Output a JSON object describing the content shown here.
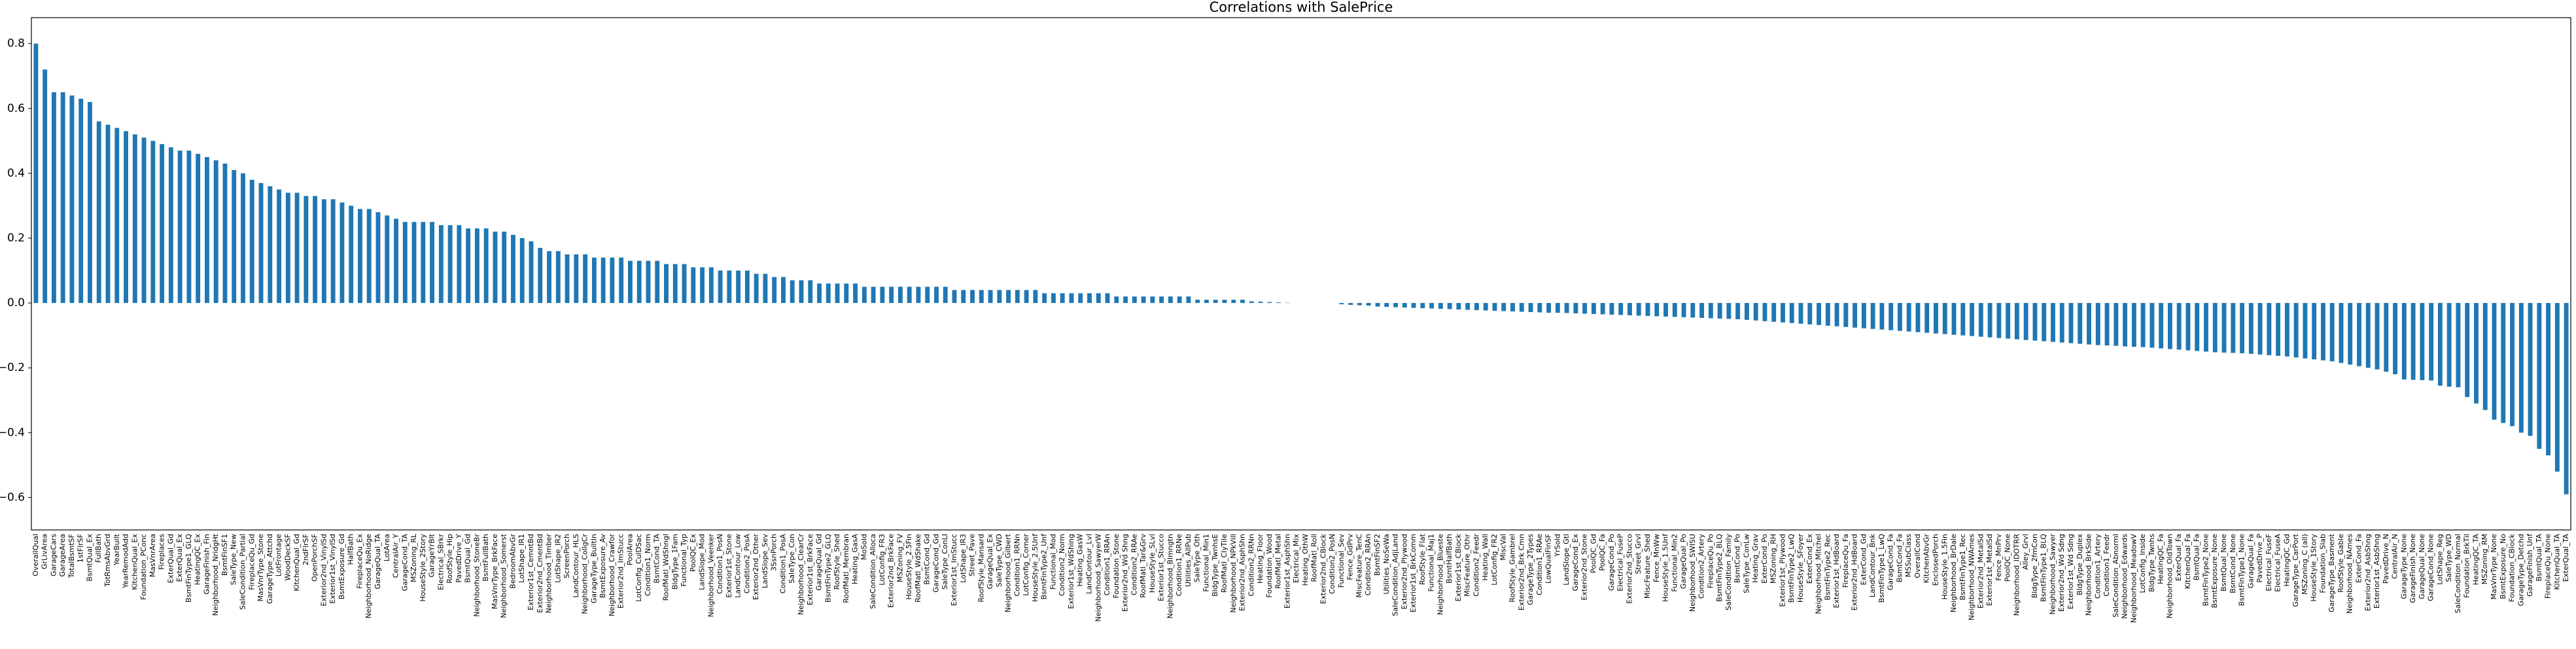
{
  "chart_data": {
    "type": "bar",
    "title": "Correlations with SalePrice",
    "color": "#1f77b4",
    "ylim": [
      -0.7,
      0.88
    ],
    "yticks": [
      {
        "value": -0.6,
        "label": "−0.6"
      },
      {
        "value": -0.4,
        "label": "−0.4"
      },
      {
        "value": -0.2,
        "label": "−0.2"
      },
      {
        "value": 0,
        "label": "0.0"
      },
      0.2,
      0.4,
      0.6,
      0.8
    ],
    "categories": [
      "OverallQual",
      "GrLivArea",
      "GarageCars",
      "GarageArea",
      "TotalBsmtSF",
      "1stFlrSF",
      "BsmtQual_Ex",
      "FullBath",
      "TotRmsAbvGrd",
      "YearBuilt",
      "YearRemodAdd",
      "KitchenQual_Ex",
      "Foundation_PConc",
      "MasVnrArea",
      "Fireplaces",
      "ExterQual_Gd",
      "ExterQual_Ex",
      "BsmtFinType1_GLQ",
      "HeatingQC_Ex",
      "GarageFinish_Fin",
      "Neighborhood_NridgHt",
      "BsmtFinSF1",
      "SaleType_New",
      "SaleCondition_Partial",
      "FireplaceQu_Gd",
      "MasVnrType_Stone",
      "GarageType_Attchd",
      "LotFrontage",
      "WoodDeckSF",
      "KitchenQual_Gd",
      "2ndFlrSF",
      "OpenPorchSF",
      "Exterior2nd_VinylSd",
      "Exterior1st_VinylSd",
      "BsmtExposure_Gd",
      "HalfBath",
      "FireplaceQu_Ex",
      "Neighborhood_NoRidge",
      "GarageQual_TA",
      "LotArea",
      "CentralAir_Y",
      "GarageCond_TA",
      "MSZoning_RL",
      "HouseStyle_2Story",
      "GarageYrBlt",
      "Electrical_SBrkr",
      "RoofStyle_Hip",
      "PavedDrive_Y",
      "BsmtQual_Gd",
      "Neighborhood_StoneBr",
      "BsmtFullBath",
      "MasVnrType_BrkFace",
      "Neighborhood_Somerst",
      "BedroomAbvGr",
      "LotShape_IR1",
      "Exterior1st_CemntBd",
      "Exterior2nd_CmentBd",
      "Neighborhood_Timber",
      "LotShape_IR2",
      "ScreenPorch",
      "LandContour_HLS",
      "Neighborhood_CollgCr",
      "GarageType_BuiltIn",
      "BsmtExposure_Av",
      "Neighborhood_Crawfor",
      "Exterior2nd_ImStucc",
      "PoolArea",
      "LotConfig_CulDSac",
      "Condition1_Norm",
      "BsmtCond_TA",
      "RoofMatl_WdShngl",
      "BldgType_1Fam",
      "Functional_Typ",
      "PoolQC_Ex",
      "LandSlope_Mod",
      "Neighborhood_Veenker",
      "Condition1_PosN",
      "Exterior1st_Stone",
      "LandContour_Low",
      "Condition2_PosA",
      "Exterior2nd_Other",
      "LandSlope_Sev",
      "3SsnPorch",
      "Condition1_PosA",
      "SaleType_Con",
      "Neighborhood_ClearCr",
      "Exterior1st_BrkFace",
      "GarageQual_Gd",
      "BsmtFinType2_GLQ",
      "RoofStyle_Shed",
      "RoofMatl_Membran",
      "Heating_GasA",
      "MoSold",
      "SaleCondition_Alloca",
      "LotConfig_FR3",
      "Exterior2nd_BrkFace",
      "MSZoning_FV",
      "HouseStyle_2.5Fin",
      "RoofMatl_WdShake",
      "BsmtCond_Gd",
      "GarageCond_Gd",
      "SaleType_ConLI",
      "Exterior1st_ImStucc",
      "LotShape_IR3",
      "Street_Pave",
      "RoofStyle_Mansard",
      "GarageQual_Ex",
      "SaleType_CWD",
      "Neighborhood_Gilbert",
      "Condition1_RRNn",
      "LotConfig_Corner",
      "HouseStyle_2.5Unf",
      "BsmtFinType2_Unf",
      "Functional_Mod",
      "Condition2_Norm",
      "Exterior1st_WdShing",
      "Heating_GasW",
      "LandContour_Lvl",
      "Neighborhood_SawyerW",
      "Condition1_RRAn",
      "Foundation_Stone",
      "Exterior2nd_Wd Shng",
      "Condition2_RRAe",
      "RoofMatl_Tar&Grv",
      "HouseStyle_SLvl",
      "Exterior1st_Stucco",
      "Neighborhood_Blmngtn",
      "Condition1_RRNe",
      "Utilities_AllPub",
      "SaleType_Oth",
      "Functional_Min1",
      "BldgType_TwnhsE",
      "RoofMatl_ClyTile",
      "Neighborhood_NPkVill",
      "Exterior2nd_AsphShn",
      "Condition2_RRNn",
      "Heating_Floor",
      "Foundation_Wood",
      "RoofMatl_Metal",
      "Exterior1st_AsphShn",
      "Electrical_Mix",
      "Heating_OthW",
      "RoofMatl_Roll",
      "Exterior2nd_CBlock",
      "Condition2_PosN",
      "Functional_Sev",
      "Fence_GdPrv",
      "MiscFeature_TenC",
      "Condition2_RRAn",
      "BsmtFinSF2",
      "Utilities_NoSeWa",
      "SaleCondition_AdjLand",
      "Exterior2nd_Plywood",
      "Exterior1st_BrkComm",
      "RoofStyle_Flat",
      "Functional_Maj1",
      "Neighborhood_Blueste",
      "BsmtHalfBath",
      "Exterior1st_CBlock",
      "MiscFeature_Othr",
      "Condition2_Feedr",
      "Heating_Wall",
      "LotConfig_FR2",
      "MiscVal",
      "RoofStyle_Gambrel",
      "Exterior2nd_Brk Cmn",
      "GarageType_2Types",
      "Condition1_RRAe",
      "LowQualFinSF",
      "YrSold",
      "LandSlope_Gtl",
      "GarageCond_Ex",
      "Exterior2nd_Stone",
      "PoolQC_Gd",
      "PoolQC_Fa",
      "GarageCond_Po",
      "Electrical_FuseP",
      "Exterior2nd_Stucco",
      "Street_Grvl",
      "MiscFeature_Shed",
      "Fence_MnWw",
      "HouseStyle_1.5Unf",
      "Functional_Min2",
      "GarageQual_Po",
      "Neighborhood_SWISU",
      "Condition2_Artery",
      "FireplaceQu_Po",
      "BsmtFinType2_BLQ",
      "SaleCondition_Family",
      "BsmtCond_Po",
      "SaleType_ConLw",
      "Heating_Grav",
      "ExterCond_Po",
      "MSZoning_RH",
      "Exterior1st_Plywood",
      "BsmtFinType2_LwQ",
      "HouseStyle_SFoyer",
      "ExterCond_Ex",
      "Neighborhood_Mitchel",
      "BsmtFinType2_Rec",
      "Exterior1st_HdBoard",
      "FireplaceQu_Fa",
      "Exterior2nd_HdBoard",
      "ExterCond_Gd",
      "LandContour_Bnk",
      "BsmtFinType1_LwQ",
      "GarageCond_Fa",
      "BsmtCond_Fa",
      "MSSubClass",
      "OverallCond",
      "KitchenAbvGr",
      "EnclosedPorch",
      "HouseStyle_1.5Fin",
      "Neighborhood_BrDale",
      "BsmtFinType1_Rec",
      "Neighborhood_NWAmes",
      "Exterior2nd_MetalSd",
      "Exterior1st_MetalSd",
      "Fence_MnPrv",
      "PoolQC_None",
      "Neighborhood_IDOTRR",
      "Alley_Grvl",
      "BldgType_2fmCon",
      "BsmtFinType1_BLQ",
      "Neighborhood_Sawyer",
      "Exterior2nd_Wd Sdng",
      "Exterior1st_Wd Sdng",
      "BldgType_Duplex",
      "Neighborhood_BrkSide",
      "Condition1_Artery",
      "Condition1_Feedr",
      "SaleCondition_Abnorml",
      "Neighborhood_Edwards",
      "Neighborhood_MeadowV",
      "LotConfig_Inside",
      "BldgType_Twnhs",
      "HeatingQC_Fa",
      "Neighborhood_OldTown",
      "ExterQual_Fa",
      "KitchenQual_Fa",
      "BsmtQual_Fa",
      "BsmtFinType2_None",
      "BsmtExposure_None",
      "BsmtQual_None",
      "BsmtCond_None",
      "BsmtFinType1_None",
      "GarageQual_Fa",
      "PavedDrive_P",
      "Electrical_FuseF",
      "Electrical_FuseA",
      "HeatingQC_Gd",
      "GarageType_CarPort",
      "MSZoning_C (all)",
      "HouseStyle_1Story",
      "Foundation_Slab",
      "GarageType_Basment",
      "RoofStyle_Gable",
      "Neighborhood_NAmes",
      "ExterCond_Fa",
      "Exterior2nd_AsbShng",
      "Exterior1st_AsbShng",
      "PavedDrive_N",
      "CentralAir_N",
      "GarageType_None",
      "GarageFinish_None",
      "GarageQual_None",
      "GarageCond_None",
      "LotShape_Reg",
      "SaleType_WD",
      "SaleCondition_Normal",
      "Foundation_BrkTil",
      "HeatingQC_TA",
      "MSZoning_RM",
      "MasVnrType_None",
      "BsmtExposure_No",
      "Foundation_CBlock",
      "GarageType_Detchd",
      "GarageFinish_Unf",
      "BsmtQual_TA",
      "FireplaceQu_None",
      "KitchenQual_TA",
      "ExterQual_TA"
    ],
    "values": [
      0.8,
      0.72,
      0.65,
      0.65,
      0.64,
      0.63,
      0.62,
      0.56,
      0.55,
      0.54,
      0.53,
      0.52,
      0.51,
      0.5,
      0.49,
      0.48,
      0.47,
      0.47,
      0.46,
      0.45,
      0.44,
      0.43,
      0.41,
      0.4,
      0.38,
      0.37,
      0.36,
      0.35,
      0.34,
      0.34,
      0.33,
      0.33,
      0.32,
      0.32,
      0.31,
      0.3,
      0.29,
      0.29,
      0.28,
      0.27,
      0.26,
      0.25,
      0.25,
      0.25,
      0.25,
      0.24,
      0.24,
      0.24,
      0.23,
      0.23,
      0.23,
      0.22,
      0.22,
      0.21,
      0.2,
      0.19,
      0.17,
      0.16,
      0.16,
      0.15,
      0.15,
      0.15,
      0.14,
      0.14,
      0.14,
      0.14,
      0.13,
      0.13,
      0.13,
      0.13,
      0.12,
      0.12,
      0.12,
      0.11,
      0.11,
      0.11,
      0.1,
      0.1,
      0.1,
      0.1,
      0.09,
      0.09,
      0.08,
      0.08,
      0.07,
      0.07,
      0.07,
      0.06,
      0.06,
      0.06,
      0.06,
      0.06,
      0.05,
      0.05,
      0.05,
      0.05,
      0.05,
      0.05,
      0.05,
      0.05,
      0.05,
      0.05,
      0.04,
      0.04,
      0.04,
      0.04,
      0.04,
      0.04,
      0.04,
      0.04,
      0.04,
      0.04,
      0.03,
      0.03,
      0.03,
      0.03,
      0.03,
      0.03,
      0.03,
      0.03,
      0.02,
      0.02,
      0.02,
      0.02,
      0.02,
      0.02,
      0.02,
      0.02,
      0.02,
      0.01,
      0.01,
      0.01,
      0.01,
      0.01,
      0.01,
      0.005,
      0.004,
      0.003,
      0.002,
      0.001,
      0,
      0,
      0,
      0,
      0,
      -0.004,
      -0.006,
      -0.007,
      -0.008,
      -0.011,
      -0.012,
      -0.013,
      -0.014,
      -0.015,
      -0.016,
      -0.017,
      -0.018,
      -0.019,
      -0.02,
      -0.021,
      -0.022,
      -0.023,
      -0.024,
      -0.025,
      -0.026,
      -0.027,
      -0.028,
      -0.029,
      -0.03,
      -0.03,
      -0.031,
      -0.032,
      -0.033,
      -0.034,
      -0.035,
      -0.036,
      -0.037,
      -0.038,
      -0.039,
      -0.04,
      -0.041,
      -0.042,
      -0.043,
      -0.044,
      -0.045,
      -0.046,
      -0.047,
      -0.048,
      -0.049,
      -0.05,
      -0.052,
      -0.054,
      -0.056,
      -0.058,
      -0.06,
      -0.062,
      -0.064,
      -0.066,
      -0.068,
      -0.07,
      -0.072,
      -0.074,
      -0.076,
      -0.078,
      -0.08,
      -0.082,
      -0.084,
      -0.086,
      -0.088,
      -0.09,
      -0.092,
      -0.094,
      -0.096,
      -0.098,
      -0.1,
      -0.102,
      -0.104,
      -0.106,
      -0.108,
      -0.11,
      -0.112,
      -0.114,
      -0.116,
      -0.118,
      -0.12,
      -0.122,
      -0.124,
      -0.126,
      -0.128,
      -0.13,
      -0.131,
      -0.132,
      -0.134,
      -0.135,
      -0.136,
      -0.138,
      -0.14,
      -0.142,
      -0.144,
      -0.146,
      -0.148,
      -0.15,
      -0.152,
      -0.153,
      -0.154,
      -0.155,
      -0.157,
      -0.159,
      -0.161,
      -0.163,
      -0.165,
      -0.168,
      -0.171,
      -0.174,
      -0.177,
      -0.18,
      -0.185,
      -0.19,
      -0.195,
      -0.2,
      -0.205,
      -0.212,
      -0.22,
      -0.236,
      -0.237,
      -0.238,
      -0.239,
      -0.255,
      -0.258,
      -0.26,
      -0.29,
      -0.31,
      -0.33,
      -0.36,
      -0.37,
      -0.38,
      -0.4,
      -0.41,
      -0.45,
      -0.47,
      -0.52,
      -0.59
    ]
  }
}
